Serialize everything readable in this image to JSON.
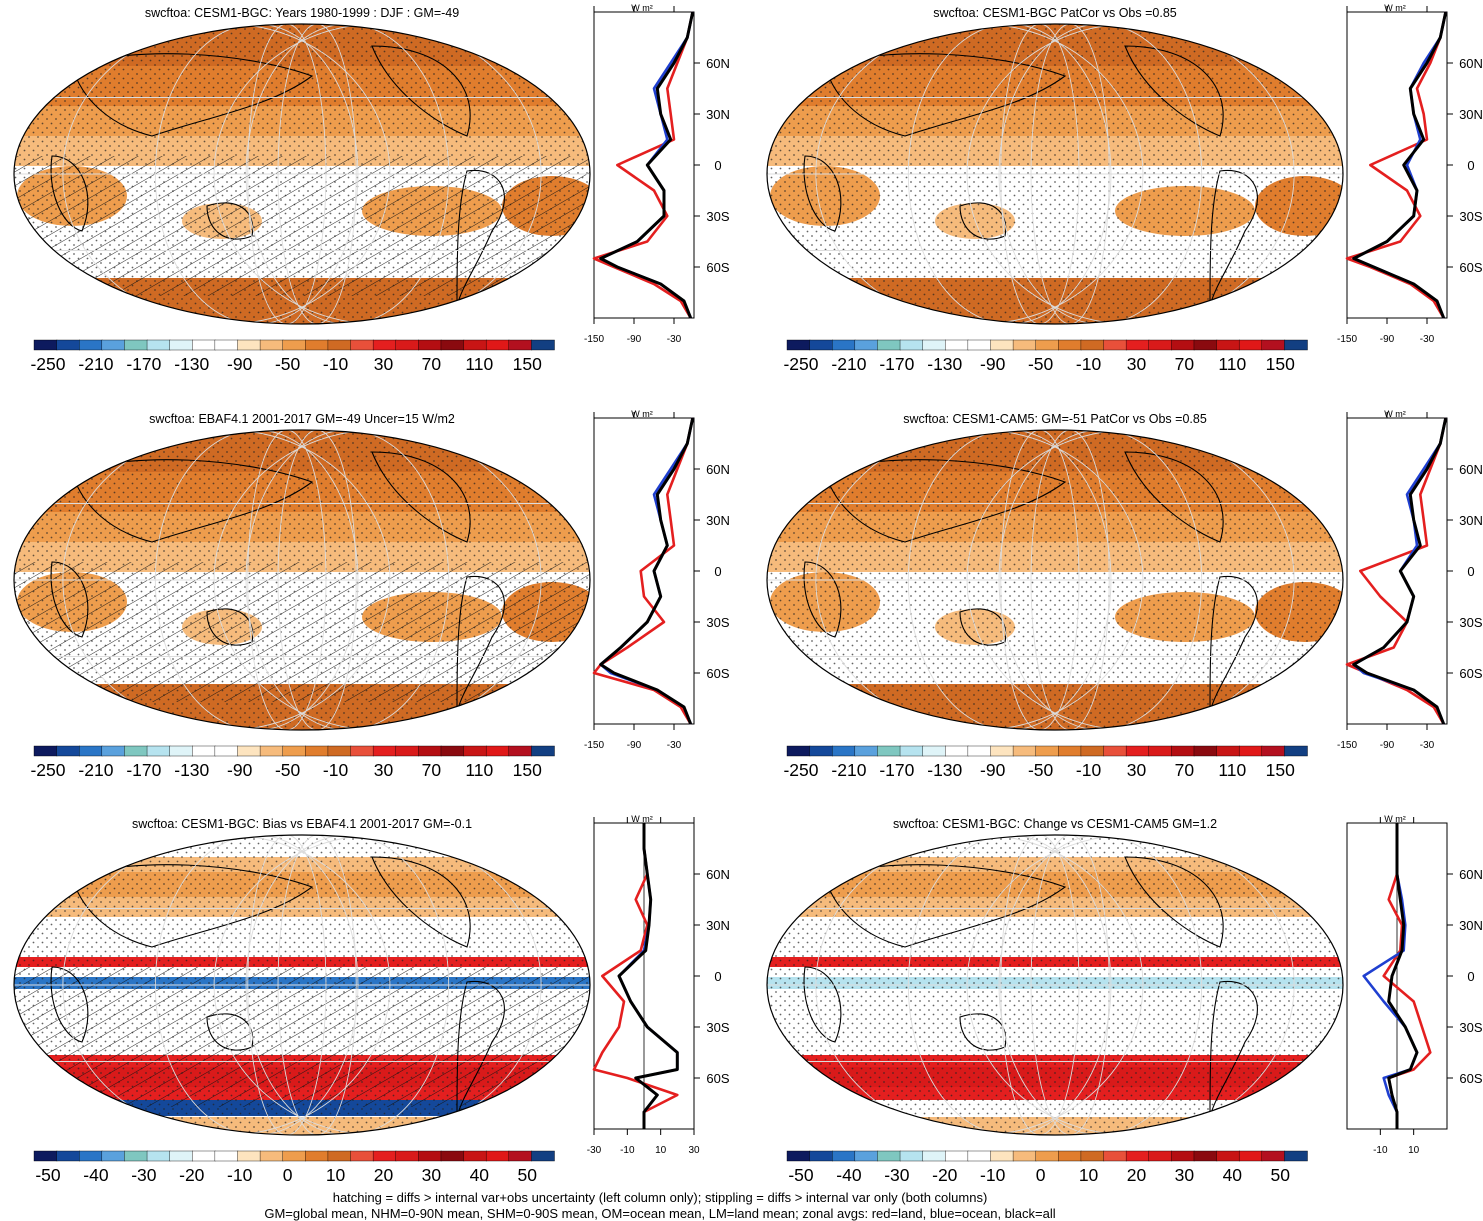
{
  "colors": {
    "scale": [
      "#0d1a5e",
      "#14489a",
      "#2a75c6",
      "#5aa1dd",
      "#7fc7c0",
      "#b6e3ef",
      "#dff4f8",
      "#ffffff",
      "#ffffff",
      "#fde4bf",
      "#f6bb7c",
      "#ee9d4d",
      "#e07d2d",
      "#cf6a23",
      "#e8503a",
      "#e41f1f",
      "#d91a1a",
      "#b40e12",
      "#8a0a0f",
      "#c81515",
      "#e01818",
      "#b3101f",
      "#123f82"
    ],
    "land": "#e41f1f",
    "ocean": "#1f3fd0",
    "all": "#000000"
  },
  "panels": [
    {
      "title": "swcftoa: CESM1-BGC: Years 1980-1999 : DJF : GM=-49",
      "colorbar_labels": [
        "-250",
        "-210",
        "-170",
        "-130",
        "-90",
        "-50",
        "-10",
        "30",
        "70",
        "110",
        "150"
      ],
      "zonal_x_ticks": [
        "-150",
        "-90",
        "-30"
      ],
      "zonal_unit": "W m²",
      "lat_labels": [
        "60N",
        "30N",
        "0",
        "30S",
        "60S"
      ],
      "kind": "mean",
      "hatch": true
    },
    {
      "title": "swcftoa: CESM1-BGC PatCor vs Obs =0.85",
      "colorbar_labels": [
        "-250",
        "-210",
        "-170",
        "-130",
        "-90",
        "-50",
        "-10",
        "30",
        "70",
        "110",
        "150"
      ],
      "zonal_x_ticks": [
        "-150",
        "-90",
        "-30"
      ],
      "zonal_unit": "W m²",
      "lat_labels": [
        "60N",
        "30N",
        "0",
        "30S",
        "60S"
      ],
      "kind": "mean",
      "hatch": false
    },
    {
      "title": "swcftoa: EBAF4.1 2001-2017 GM=-49 Uncer=15 W/m2",
      "colorbar_labels": [
        "-250",
        "-210",
        "-170",
        "-130",
        "-90",
        "-50",
        "-10",
        "30",
        "70",
        "110",
        "150"
      ],
      "zonal_x_ticks": [
        "-150",
        "-90",
        "-30"
      ],
      "zonal_unit": "W m²",
      "lat_labels": [
        "60N",
        "30N",
        "0",
        "30S",
        "60S"
      ],
      "kind": "mean",
      "hatch": true
    },
    {
      "title": "swcftoa: CESM1-CAM5: GM=-51 PatCor vs Obs =0.85",
      "colorbar_labels": [
        "-250",
        "-210",
        "-170",
        "-130",
        "-90",
        "-50",
        "-10",
        "30",
        "70",
        "110",
        "150"
      ],
      "zonal_x_ticks": [
        "-150",
        "-90",
        "-30"
      ],
      "zonal_unit": "W m²",
      "lat_labels": [
        "60N",
        "30N",
        "0",
        "30S",
        "60S"
      ],
      "kind": "mean",
      "hatch": false
    },
    {
      "title": "swcftoa: CESM1-BGC: Bias vs EBAF4.1 2001-2017 GM=-0.1",
      "colorbar_labels": [
        "-50",
        "-40",
        "-30",
        "-20",
        "-10",
        "0",
        "10",
        "20",
        "30",
        "40",
        "50"
      ],
      "zonal_x_ticks": [
        "-30",
        "-10",
        "10",
        "30"
      ],
      "zonal_unit": "W m²",
      "lat_labels": [
        "60N",
        "30N",
        "0",
        "30S",
        "60S"
      ],
      "kind": "diff",
      "hatch": true
    },
    {
      "title": "swcftoa: CESM1-BGC: Change vs CESM1-CAM5 GM=1.2",
      "colorbar_labels": [
        "-50",
        "-40",
        "-30",
        "-20",
        "-10",
        "0",
        "10",
        "20",
        "30",
        "40",
        "50"
      ],
      "zonal_x_ticks": [
        "-10",
        "10"
      ],
      "zonal_unit": "W m²",
      "lat_labels": [
        "60N",
        "30N",
        "0",
        "30S",
        "60S"
      ],
      "kind": "diff",
      "hatch": false
    }
  ],
  "footer": {
    "line1": "hatching = diffs > internal var+obs uncertainty (left column only); stippling = diffs > internal var only (both columns)",
    "line2": "GM=global mean, NHM=0-90N mean, SHM=0-90S mean, OM=ocean mean, LM=land mean; zonal avgs: red=land, blue=ocean, black=all"
  },
  "chart_data": [
    {
      "type": "heatmap",
      "title": "swcftoa: CESM1-BGC: Years 1980-1999 : DJF : GM=-49",
      "colorbar_labels": [
        "-250",
        "-210",
        "-170",
        "-130",
        "-90",
        "-50",
        "-10",
        "30",
        "70",
        "110",
        "150"
      ],
      "zonal_mean": {
        "lat": [
          90,
          75,
          60,
          45,
          30,
          15,
          0,
          -15,
          -30,
          -45,
          -55,
          -60,
          -70,
          -80,
          -90
        ],
        "all": [
          -2,
          -10,
          -30,
          -55,
          -50,
          -35,
          -70,
          -45,
          -45,
          -85,
          -140,
          -115,
          -50,
          -15,
          -5
        ],
        "ocean": [
          -2,
          -10,
          -35,
          -60,
          -50,
          -40,
          -70,
          -45,
          -45,
          -85,
          -140,
          -115,
          -50,
          -15,
          -5
        ],
        "land": [
          -2,
          -10,
          -25,
          -40,
          -35,
          -30,
          -115,
          -60,
          -40,
          -70,
          -150,
          -120,
          -60,
          -20,
          -5
        ]
      }
    },
    {
      "type": "heatmap",
      "title": "swcftoa: CESM1-BGC PatCor vs Obs =0.85",
      "colorbar_labels": [
        "-250",
        "-210",
        "-170",
        "-130",
        "-90",
        "-50",
        "-10",
        "30",
        "70",
        "110",
        "150"
      ],
      "zonal_mean": {
        "lat": [
          90,
          75,
          60,
          45,
          30,
          15,
          0,
          -15,
          -30,
          -45,
          -55,
          -60,
          -70,
          -80,
          -90
        ],
        "all": [
          -2,
          -10,
          -30,
          -55,
          -50,
          -35,
          -65,
          -45,
          -50,
          -90,
          -140,
          -110,
          -50,
          -15,
          -5
        ],
        "ocean": [
          -2,
          -10,
          -35,
          -55,
          -50,
          -40,
          -60,
          -45,
          -50,
          -90,
          -140,
          -110,
          -50,
          -15,
          -5
        ],
        "land": [
          -2,
          -10,
          -25,
          -45,
          -35,
          -30,
          -115,
          -60,
          -40,
          -70,
          -150,
          -115,
          -55,
          -20,
          -5
        ]
      }
    },
    {
      "type": "heatmap",
      "title": "swcftoa: EBAF4.1 2001-2017 GM=-49 Uncer=15 W/m2",
      "colorbar_labels": [
        "-250",
        "-210",
        "-170",
        "-130",
        "-90",
        "-50",
        "-10",
        "30",
        "70",
        "110",
        "150"
      ],
      "zonal_mean": {
        "lat": [
          90,
          75,
          60,
          45,
          30,
          15,
          0,
          -15,
          -30,
          -45,
          -55,
          -60,
          -70,
          -80,
          -90
        ],
        "all": [
          -2,
          -10,
          -30,
          -55,
          -50,
          -40,
          -60,
          -50,
          -70,
          -110,
          -140,
          -120,
          -55,
          -15,
          -5
        ],
        "ocean": [
          -2,
          -10,
          -35,
          -60,
          -50,
          -40,
          -60,
          -50,
          -70,
          -110,
          -140,
          -125,
          -55,
          -15,
          -5
        ],
        "land": [
          -2,
          -10,
          -25,
          -40,
          -35,
          -30,
          -80,
          -75,
          -45,
          -100,
          -140,
          -150,
          -60,
          -20,
          -5
        ]
      }
    },
    {
      "type": "heatmap",
      "title": "swcftoa: CESM1-CAM5: GM=-51 PatCor vs Obs =0.85",
      "colorbar_labels": [
        "-250",
        "-210",
        "-170",
        "-130",
        "-90",
        "-50",
        "-10",
        "30",
        "70",
        "110",
        "150"
      ],
      "zonal_mean": {
        "lat": [
          90,
          75,
          60,
          45,
          30,
          15,
          0,
          -15,
          -30,
          -45,
          -55,
          -60,
          -70,
          -80,
          -90
        ],
        "all": [
          -2,
          -10,
          -30,
          -55,
          -50,
          -40,
          -70,
          -50,
          -60,
          -95,
          -140,
          -120,
          -50,
          -15,
          -5
        ],
        "ocean": [
          -2,
          -10,
          -35,
          -60,
          -50,
          -45,
          -70,
          -50,
          -60,
          -95,
          -140,
          -125,
          -50,
          -15,
          -5
        ],
        "land": [
          -2,
          -10,
          -25,
          -40,
          -35,
          -30,
          -130,
          -100,
          -60,
          -80,
          -150,
          -120,
          -60,
          -20,
          -5
        ]
      }
    },
    {
      "type": "heatmap",
      "title": "swcftoa: CESM1-BGC: Bias vs EBAF4.1 2001-2017 GM=-0.1",
      "colorbar_labels": [
        "-50",
        "-40",
        "-30",
        "-20",
        "-10",
        "0",
        "10",
        "20",
        "30",
        "40",
        "50"
      ],
      "zonal_mean": {
        "lat": [
          90,
          75,
          60,
          45,
          30,
          15,
          0,
          -15,
          -30,
          -45,
          -55,
          -60,
          -70,
          -80,
          -90
        ],
        "all": [
          0,
          0,
          2,
          4,
          3,
          1,
          -15,
          -8,
          2,
          20,
          20,
          -5,
          8,
          0,
          0
        ],
        "ocean": [
          0,
          0,
          2,
          4,
          3,
          0,
          -15,
          -8,
          2,
          20,
          20,
          -5,
          8,
          0,
          0
        ],
        "land": [
          0,
          0,
          2,
          -5,
          2,
          -2,
          -25,
          -12,
          -15,
          -25,
          -30,
          -10,
          20,
          0,
          0
        ]
      }
    },
    {
      "type": "heatmap",
      "title": "swcftoa: CESM1-BGC: Change vs CESM1-CAM5 GM=1.2",
      "colorbar_labels": [
        "-50",
        "-40",
        "-30",
        "-20",
        "-10",
        "0",
        "10",
        "20",
        "30",
        "40",
        "50"
      ],
      "zonal_mean": {
        "lat": [
          90,
          75,
          60,
          45,
          30,
          15,
          0,
          -15,
          -30,
          -45,
          -55,
          -60,
          -70,
          -80,
          -90
        ],
        "all": [
          0,
          0,
          0,
          2,
          4,
          3,
          -3,
          -5,
          5,
          12,
          8,
          -5,
          -3,
          0,
          0
        ],
        "ocean": [
          0,
          0,
          0,
          3,
          5,
          4,
          -20,
          -8,
          5,
          12,
          8,
          -8,
          -5,
          0,
          0
        ],
        "land": [
          0,
          0,
          0,
          -5,
          3,
          2,
          -8,
          10,
          15,
          20,
          10,
          -5,
          -3,
          0,
          0
        ]
      }
    }
  ]
}
